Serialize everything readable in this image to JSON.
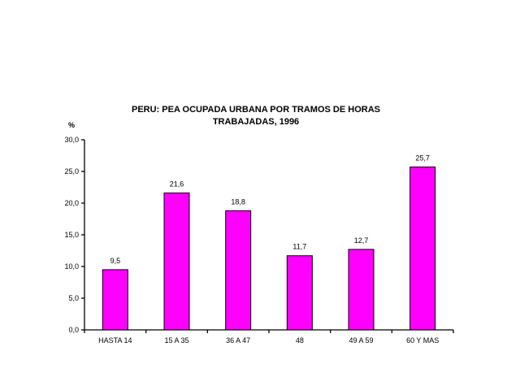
{
  "chart_data": {
    "type": "bar",
    "title_lines": [
      "PERU: PEA OCUPADA URBANA POR TRAMOS DE HORAS",
      "TRABAJADAS, 1996"
    ],
    "ylabel": "%",
    "xlabel": "",
    "categories": [
      "HASTA 14",
      "15 A 35",
      "36 A 47",
      "48",
      "49 A 59",
      "60 Y MAS"
    ],
    "values": [
      9.5,
      21.6,
      18.8,
      11.7,
      12.7,
      25.7
    ],
    "value_labels": [
      "9,5",
      "21,6",
      "18,8",
      "11,7",
      "12,7",
      "25,7"
    ],
    "ylim": [
      0,
      30
    ],
    "yticks": [
      0,
      5,
      10,
      15,
      20,
      25,
      30
    ],
    "ytick_labels": [
      "0,0",
      "5,0",
      "10,0",
      "15,0",
      "20,0",
      "25,0",
      "30,0"
    ],
    "grid": false,
    "legend": "none",
    "bar_color": "#FF00FF",
    "bar_edge_color": "#000000"
  }
}
